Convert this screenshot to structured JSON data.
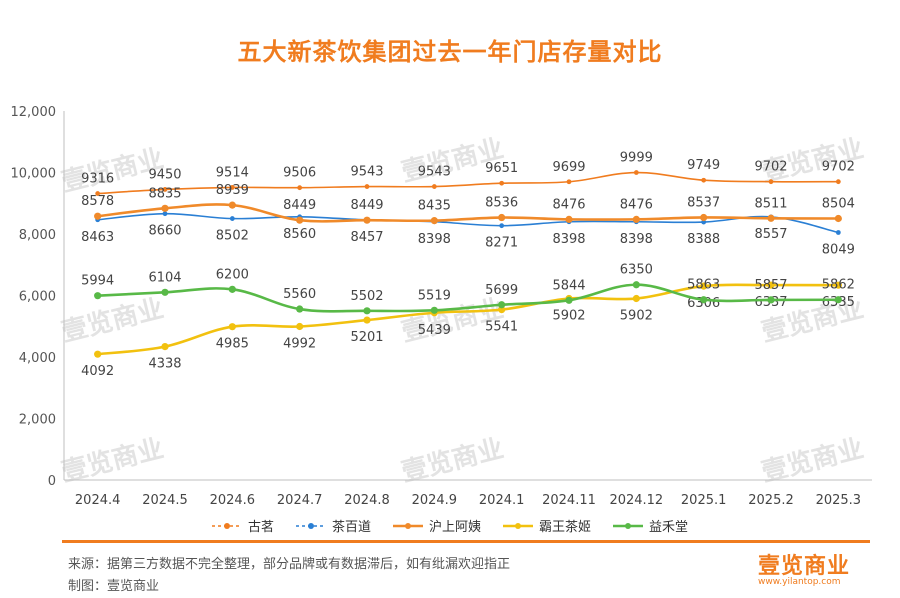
{
  "title": "五大新茶饮集团过去一年门店存量对比",
  "watermark": "壹览商业",
  "footer": {
    "source": "来源：据第三方数据不完全整理，部分品牌或有数据滞后，如有纰漏欢迎指正",
    "credit": "制图：壹览商业",
    "logo": "壹览商业",
    "url": "www.yilantop.com"
  },
  "chart_data": {
    "type": "line",
    "categories": [
      "2024.4",
      "2024.5",
      "2024.6",
      "2024.7",
      "2024.8",
      "2024.9",
      "2024.1",
      "2024.11",
      "2024.12",
      "2025.1",
      "2025.2",
      "2025.3"
    ],
    "ylim": [
      0,
      12000
    ],
    "yticks": [
      0,
      2000,
      4000,
      6000,
      8000,
      10000,
      12000
    ],
    "ytick_labels": [
      "0",
      "2,000",
      "4,000",
      "6,000",
      "8,000",
      "10,000",
      "12,000"
    ],
    "grid": false,
    "legend_position": "bottom",
    "series": [
      {
        "name": "古茗",
        "color": "#f07c1f",
        "dash": true,
        "label_pos": "above",
        "values": [
          9316,
          9450,
          9514,
          9506,
          9543,
          9543,
          9651,
          9699,
          9999,
          9749,
          9702,
          9702
        ]
      },
      {
        "name": "茶百道",
        "color": "#2a7fd4",
        "dash": true,
        "label_pos": "below",
        "values": [
          8463,
          8660,
          8502,
          8560,
          8457,
          8398,
          8271,
          8398,
          8398,
          8388,
          8557,
          8049
        ]
      },
      {
        "name": "沪上阿姨",
        "color": "#f08a2a",
        "dash": false,
        "label_pos": "above",
        "values": [
          8578,
          8835,
          8939,
          8449,
          8449,
          8435,
          8536,
          8476,
          8476,
          8537,
          8511,
          8504
        ]
      },
      {
        "name": "霸王茶姬",
        "color": "#f2c10f",
        "dash": false,
        "label_pos": "below",
        "values": [
          4092,
          4338,
          4985,
          4992,
          5201,
          5439,
          5541,
          5902,
          5902,
          6306,
          6337,
          6335
        ]
      },
      {
        "name": "益禾堂",
        "color": "#58b947",
        "dash": false,
        "label_pos": "above",
        "values": [
          5994,
          6104,
          6200,
          5560,
          5502,
          5519,
          5699,
          5844,
          6350,
          5863,
          5857,
          5862
        ]
      }
    ]
  }
}
